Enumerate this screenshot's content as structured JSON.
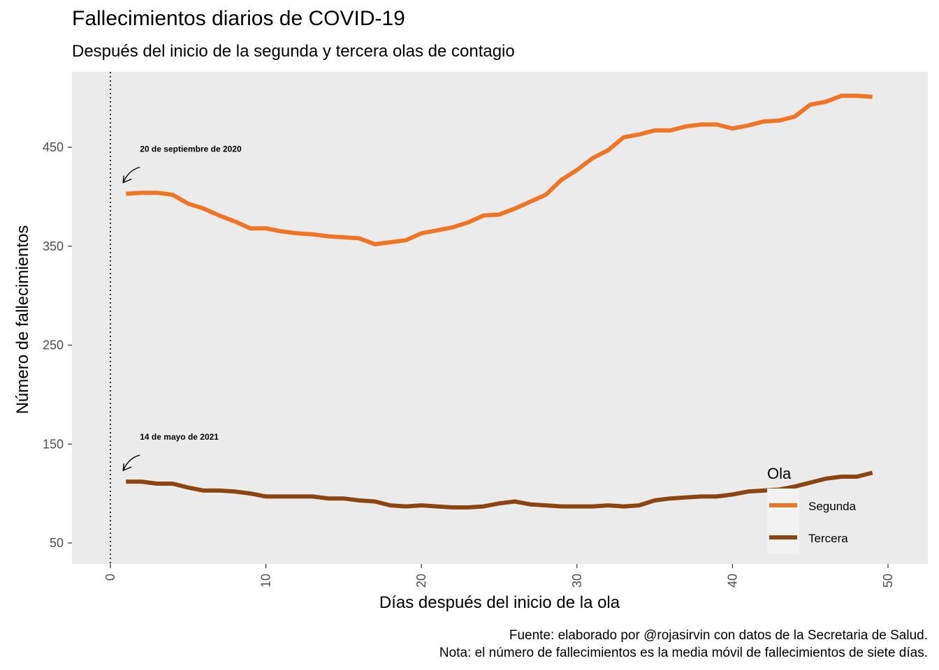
{
  "title": "Fallecimientos diarios de COVID-19",
  "subtitle": "Después del inicio de la segunda y tercera olas de contagio",
  "caption": {
    "line1": "Fuente: elaborado por @rojasirvin con datos de la Secretaria de Salud.",
    "line2": "Nota: el número de fallecimientos es la media móvil de fallecimientos de siete días."
  },
  "chart_data": {
    "type": "line",
    "title": "Fallecimientos diarios de COVID-19",
    "subtitle": "Después del inicio de la segunda y tercera olas de contagio",
    "xlabel": "Días después del inicio de la ola",
    "ylabel": "Número de fallecimientos",
    "xlim": [
      0,
      50
    ],
    "ylim": [
      50,
      500
    ],
    "x_ticks": [
      0,
      10,
      20,
      30,
      40,
      50
    ],
    "y_ticks": [
      50,
      150,
      250,
      350,
      450
    ],
    "grid": false,
    "reference_line": {
      "x": 0,
      "style": "dotted"
    },
    "legend": {
      "title": "Ola",
      "position": "bottom-right"
    },
    "series": [
      {
        "name": "Segunda",
        "color": "#EE7526",
        "x": [
          1,
          2,
          3,
          4,
          5,
          6,
          7,
          8,
          9,
          10,
          11,
          12,
          13,
          14,
          15,
          16,
          17,
          18,
          19,
          20,
          21,
          22,
          23,
          24,
          25,
          26,
          27,
          28,
          29,
          30,
          31,
          32,
          33,
          34,
          35,
          36,
          37,
          38,
          39,
          40,
          41,
          42,
          43,
          44,
          45,
          46,
          47,
          48,
          49
        ],
        "values": [
          403,
          404,
          404,
          402,
          393,
          388,
          381,
          375,
          368,
          368,
          365,
          363,
          362,
          360,
          359,
          358,
          352,
          354,
          356,
          363,
          366,
          369,
          374,
          381,
          382,
          388,
          395,
          402,
          417,
          427,
          439,
          447,
          460,
          463,
          467,
          467,
          471,
          473,
          473,
          469,
          472,
          476,
          477,
          481,
          493,
          496,
          502,
          502,
          501
        ]
      },
      {
        "name": "Tercera",
        "color": "#8B4513",
        "x": [
          1,
          2,
          3,
          4,
          5,
          6,
          7,
          8,
          9,
          10,
          11,
          12,
          13,
          14,
          15,
          16,
          17,
          18,
          19,
          20,
          21,
          22,
          23,
          24,
          25,
          26,
          27,
          28,
          29,
          30,
          31,
          32,
          33,
          34,
          35,
          36,
          37,
          38,
          39,
          40,
          41,
          42,
          43,
          44,
          45,
          46,
          47,
          48,
          49
        ],
        "values": [
          112,
          112,
          110,
          110,
          106,
          103,
          103,
          102,
          100,
          97,
          97,
          97,
          97,
          95,
          95,
          93,
          92,
          88,
          87,
          88,
          87,
          86,
          86,
          87,
          90,
          92,
          89,
          88,
          87,
          87,
          87,
          88,
          87,
          88,
          93,
          95,
          96,
          97,
          97,
          99,
          102,
          103,
          104,
          107,
          111,
          115,
          117,
          117,
          121
        ]
      }
    ],
    "annotations": [
      {
        "text": "20 de septiembre de 2020",
        "series": "Segunda"
      },
      {
        "text": "14 de mayo de 2021",
        "series": "Tercera"
      }
    ]
  }
}
